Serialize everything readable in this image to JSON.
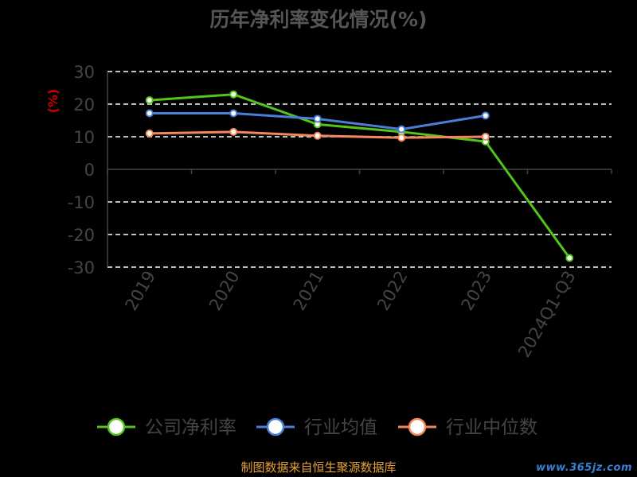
{
  "chart_data": {
    "type": "line",
    "title": "历年净利率变化情况(%)",
    "ylabel": "(%)",
    "xlabel": "",
    "categories": [
      "2019",
      "2020",
      "2021",
      "2022",
      "2023",
      "2024Q1-Q3"
    ],
    "ylim": [
      -30,
      30
    ],
    "yticks": [
      30,
      20,
      10,
      0,
      -10,
      -20,
      -30
    ],
    "grid": true,
    "legend_position": "bottom",
    "series": [
      {
        "name": "公司净利率",
        "color": "#52c41a",
        "values": [
          21.2,
          23.0,
          13.8,
          11.5,
          8.5,
          -27.2
        ]
      },
      {
        "name": "行业均值",
        "color": "#4a7fd6",
        "values": [
          17.2,
          17.2,
          15.5,
          12.3,
          16.5,
          null
        ]
      },
      {
        "name": "行业中位数",
        "color": "#f5875a",
        "values": [
          11.0,
          11.5,
          10.3,
          9.7,
          10.0,
          null
        ]
      }
    ]
  },
  "footer": {
    "source": "制图数据来自恒生聚源数据库",
    "watermark": "www.365jz.com"
  }
}
